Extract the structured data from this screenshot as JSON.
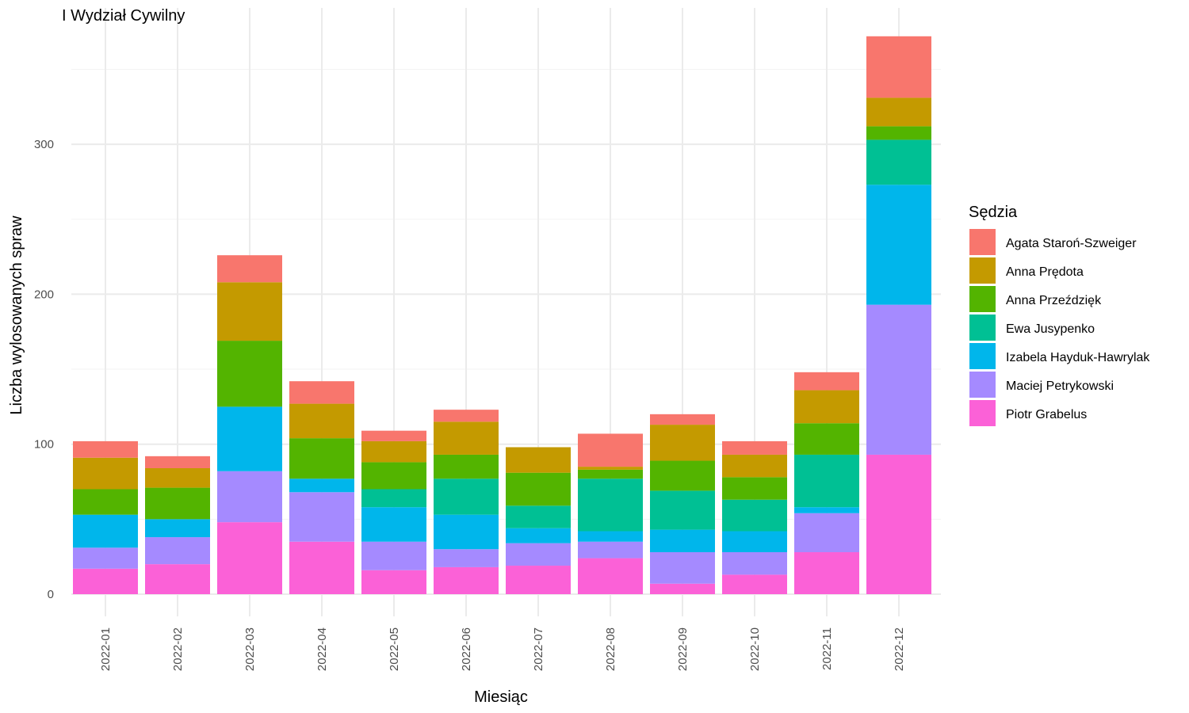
{
  "chart_data": {
    "type": "bar",
    "stacked": true,
    "title": "I Wydział Cywilny",
    "xlabel": "Miesiąc",
    "ylabel": "Liczba wylosowanych spraw",
    "ylim": [
      0,
      390
    ],
    "yticks": [
      0,
      100,
      200,
      300
    ],
    "grid": true,
    "legend_title": "Sędzia",
    "legend_position": "right",
    "categories": [
      "2022-01",
      "2022-02",
      "2022-03",
      "2022-04",
      "2022-05",
      "2022-06",
      "2022-07",
      "2022-08",
      "2022-09",
      "2022-10",
      "2022-11",
      "2022-12"
    ],
    "series": [
      {
        "name": "Agata Staroń-Szweiger",
        "color": "#F8766D",
        "values": [
          11,
          8,
          18,
          15,
          7,
          8,
          0,
          22,
          7,
          9,
          12,
          41
        ]
      },
      {
        "name": "Anna Prędota",
        "color": "#C49A00",
        "values": [
          21,
          13,
          39,
          23,
          14,
          22,
          17,
          2,
          24,
          15,
          22,
          19
        ]
      },
      {
        "name": "Anna Przeździęk",
        "color": "#53B400",
        "values": [
          17,
          21,
          44,
          27,
          18,
          16,
          22,
          6,
          20,
          15,
          21,
          9
        ]
      },
      {
        "name": "Ewa Jusypenko",
        "color": "#00C094",
        "values": [
          0,
          0,
          0,
          0,
          12,
          24,
          15,
          35,
          26,
          21,
          35,
          30
        ]
      },
      {
        "name": "Izabela Hayduk-Hawrylak",
        "color": "#00B6EB",
        "values": [
          22,
          12,
          43,
          9,
          23,
          23,
          10,
          7,
          15,
          14,
          4,
          80
        ]
      },
      {
        "name": "Maciej Petrykowski",
        "color": "#A58AFF",
        "values": [
          14,
          18,
          34,
          33,
          19,
          12,
          15,
          11,
          21,
          15,
          26,
          100
        ]
      },
      {
        "name": "Piotr Grabelus",
        "color": "#FB61D7",
        "values": [
          17,
          20,
          48,
          35,
          16,
          18,
          19,
          24,
          7,
          13,
          28,
          93
        ]
      }
    ]
  }
}
